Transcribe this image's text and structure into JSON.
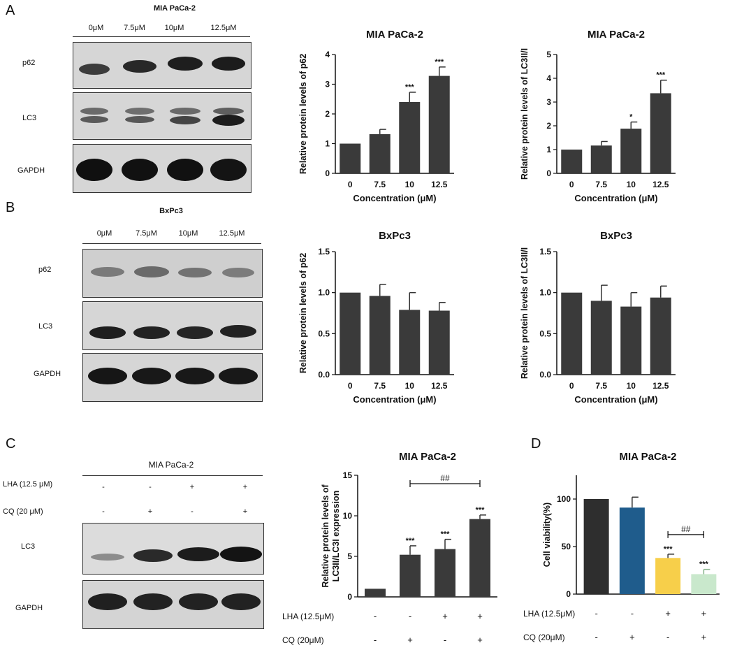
{
  "panels": {
    "A": "A",
    "B": "B",
    "C": "C",
    "D": "D"
  },
  "blot_a": {
    "title": "MIA PaCa-2",
    "lanes": [
      "0μM",
      "7.5μM",
      "10μM",
      "12.5μM"
    ],
    "rows": [
      "p62",
      "LC3",
      "GAPDH"
    ]
  },
  "blot_b": {
    "title": "BxPc3",
    "lanes": [
      "0μM",
      "7.5μM",
      "10μM",
      "12.5μM"
    ],
    "rows": [
      "p62",
      "LC3",
      "GAPDH"
    ]
  },
  "blot_c": {
    "title": "MIA PaCa-2",
    "treat_rows": [
      {
        "label": "LHA (12.5 μM)",
        "marks": [
          "-",
          "-",
          "+",
          "+"
        ]
      },
      {
        "label": "CQ (20 μM)",
        "marks": [
          "-",
          "+",
          "-",
          "+"
        ]
      }
    ],
    "rows": [
      "LC3",
      "GAPDH"
    ]
  },
  "chart_data": [
    {
      "id": "a1",
      "type": "bar",
      "title": "MIA PaCa-2",
      "xlabel": "Concentration (μM)",
      "ylabel": "Relative protein levels of p62",
      "categories": [
        "0",
        "7.5",
        "10",
        "12.5"
      ],
      "values": [
        1.0,
        1.32,
        2.4,
        3.28
      ],
      "errors": [
        0,
        0.16,
        0.33,
        0.3
      ],
      "sig": [
        "",
        "",
        "***",
        "***"
      ],
      "ylim": [
        0,
        4
      ],
      "yticks": [
        0,
        1,
        2,
        3,
        4
      ],
      "ytick_labels": [
        "0",
        "1",
        "2",
        "3",
        "4"
      ]
    },
    {
      "id": "a2",
      "type": "bar",
      "title": "MIA PaCa-2",
      "xlabel": "Concentration (μM)",
      "ylabel": "Relative protein levels of LC3II/I",
      "categories": [
        "0",
        "7.5",
        "10",
        "12.5"
      ],
      "values": [
        1.0,
        1.17,
        1.88,
        3.37
      ],
      "errors": [
        0,
        0.17,
        0.28,
        0.55
      ],
      "sig": [
        "",
        "",
        "*",
        "***"
      ],
      "ylim": [
        0,
        5
      ],
      "yticks": [
        0,
        1,
        2,
        3,
        4,
        5
      ],
      "ytick_labels": [
        "0",
        "1",
        "2",
        "3",
        "4",
        "5"
      ]
    },
    {
      "id": "b1",
      "type": "bar",
      "title": "BxPc3",
      "xlabel": "Concentration (μM)",
      "ylabel": "Relative protein levels of p62",
      "categories": [
        "0",
        "7.5",
        "10",
        "12.5"
      ],
      "values": [
        1.0,
        0.96,
        0.79,
        0.78
      ],
      "errors": [
        0,
        0.14,
        0.21,
        0.1
      ],
      "sig": [
        "",
        "",
        "",
        ""
      ],
      "ylim": [
        0,
        1.5
      ],
      "yticks": [
        0,
        0.5,
        1.0,
        1.5
      ],
      "ytick_labels": [
        "0.0",
        "0.5",
        "1.0",
        "1.5"
      ]
    },
    {
      "id": "b2",
      "type": "bar",
      "title": "BxPc3",
      "xlabel": "Concentration (μM)",
      "ylabel": "Relative protein levels of LC3II/I",
      "categories": [
        "0",
        "7.5",
        "10",
        "12.5"
      ],
      "values": [
        1.0,
        0.9,
        0.83,
        0.94
      ],
      "errors": [
        0,
        0.19,
        0.17,
        0.14
      ],
      "sig": [
        "",
        "",
        "",
        ""
      ],
      "ylim": [
        0,
        1.5
      ],
      "yticks": [
        0,
        0.5,
        1.0,
        1.5
      ],
      "ytick_labels": [
        "0.0",
        "0.5",
        "1.0",
        "1.5"
      ]
    },
    {
      "id": "c1",
      "type": "bar",
      "title": "MIA PaCa-2",
      "xlabel": "",
      "ylabel_lines": [
        "Relative protein levels of",
        "LC3II/LC3I expression"
      ],
      "categories": [
        "1",
        "2",
        "3",
        "4"
      ],
      "values": [
        1.0,
        5.2,
        5.9,
        9.6
      ],
      "errors": [
        0,
        1.1,
        1.2,
        0.5
      ],
      "sig": [
        "",
        "***",
        "***",
        "***"
      ],
      "ylim": [
        0,
        15
      ],
      "yticks": [
        0,
        5,
        10,
        15
      ],
      "ytick_labels": [
        "0",
        "5",
        "10",
        "15"
      ],
      "bracket": {
        "from": 1,
        "to": 3,
        "label": "##"
      },
      "conditions": [
        {
          "label": "LHA (12.5μM)",
          "marks": [
            "-",
            "-",
            "+",
            "+"
          ]
        },
        {
          "label": "CQ (20μM)",
          "marks": [
            "-",
            "+",
            "-",
            "+"
          ]
        }
      ]
    },
    {
      "id": "d1",
      "type": "bar",
      "title": "MIA PaCa-2",
      "xlabel": "",
      "ylabel": "Cell viability(%)",
      "categories": [
        "1",
        "2",
        "3",
        "4"
      ],
      "values": [
        100,
        91,
        38,
        21
      ],
      "errors": [
        0,
        11,
        4,
        5
      ],
      "sig": [
        "",
        "",
        "***",
        "***"
      ],
      "ylim": [
        0,
        125
      ],
      "yticks": [
        0,
        50,
        100
      ],
      "ytick_labels": [
        "0",
        "50",
        "100"
      ],
      "bar_colors": [
        "#2e2e2e",
        "#1f5c8c",
        "#f7cf4a",
        "#c9e8cc"
      ],
      "bracket": {
        "from": 2,
        "to": 3,
        "label": "##"
      },
      "conditions": [
        {
          "label": "LHA (12.5μM)",
          "marks": [
            "-",
            "-",
            "+",
            "+"
          ]
        },
        {
          "label": "CQ (20μM)",
          "marks": [
            "-",
            "+",
            "-",
            "+"
          ]
        }
      ]
    }
  ]
}
